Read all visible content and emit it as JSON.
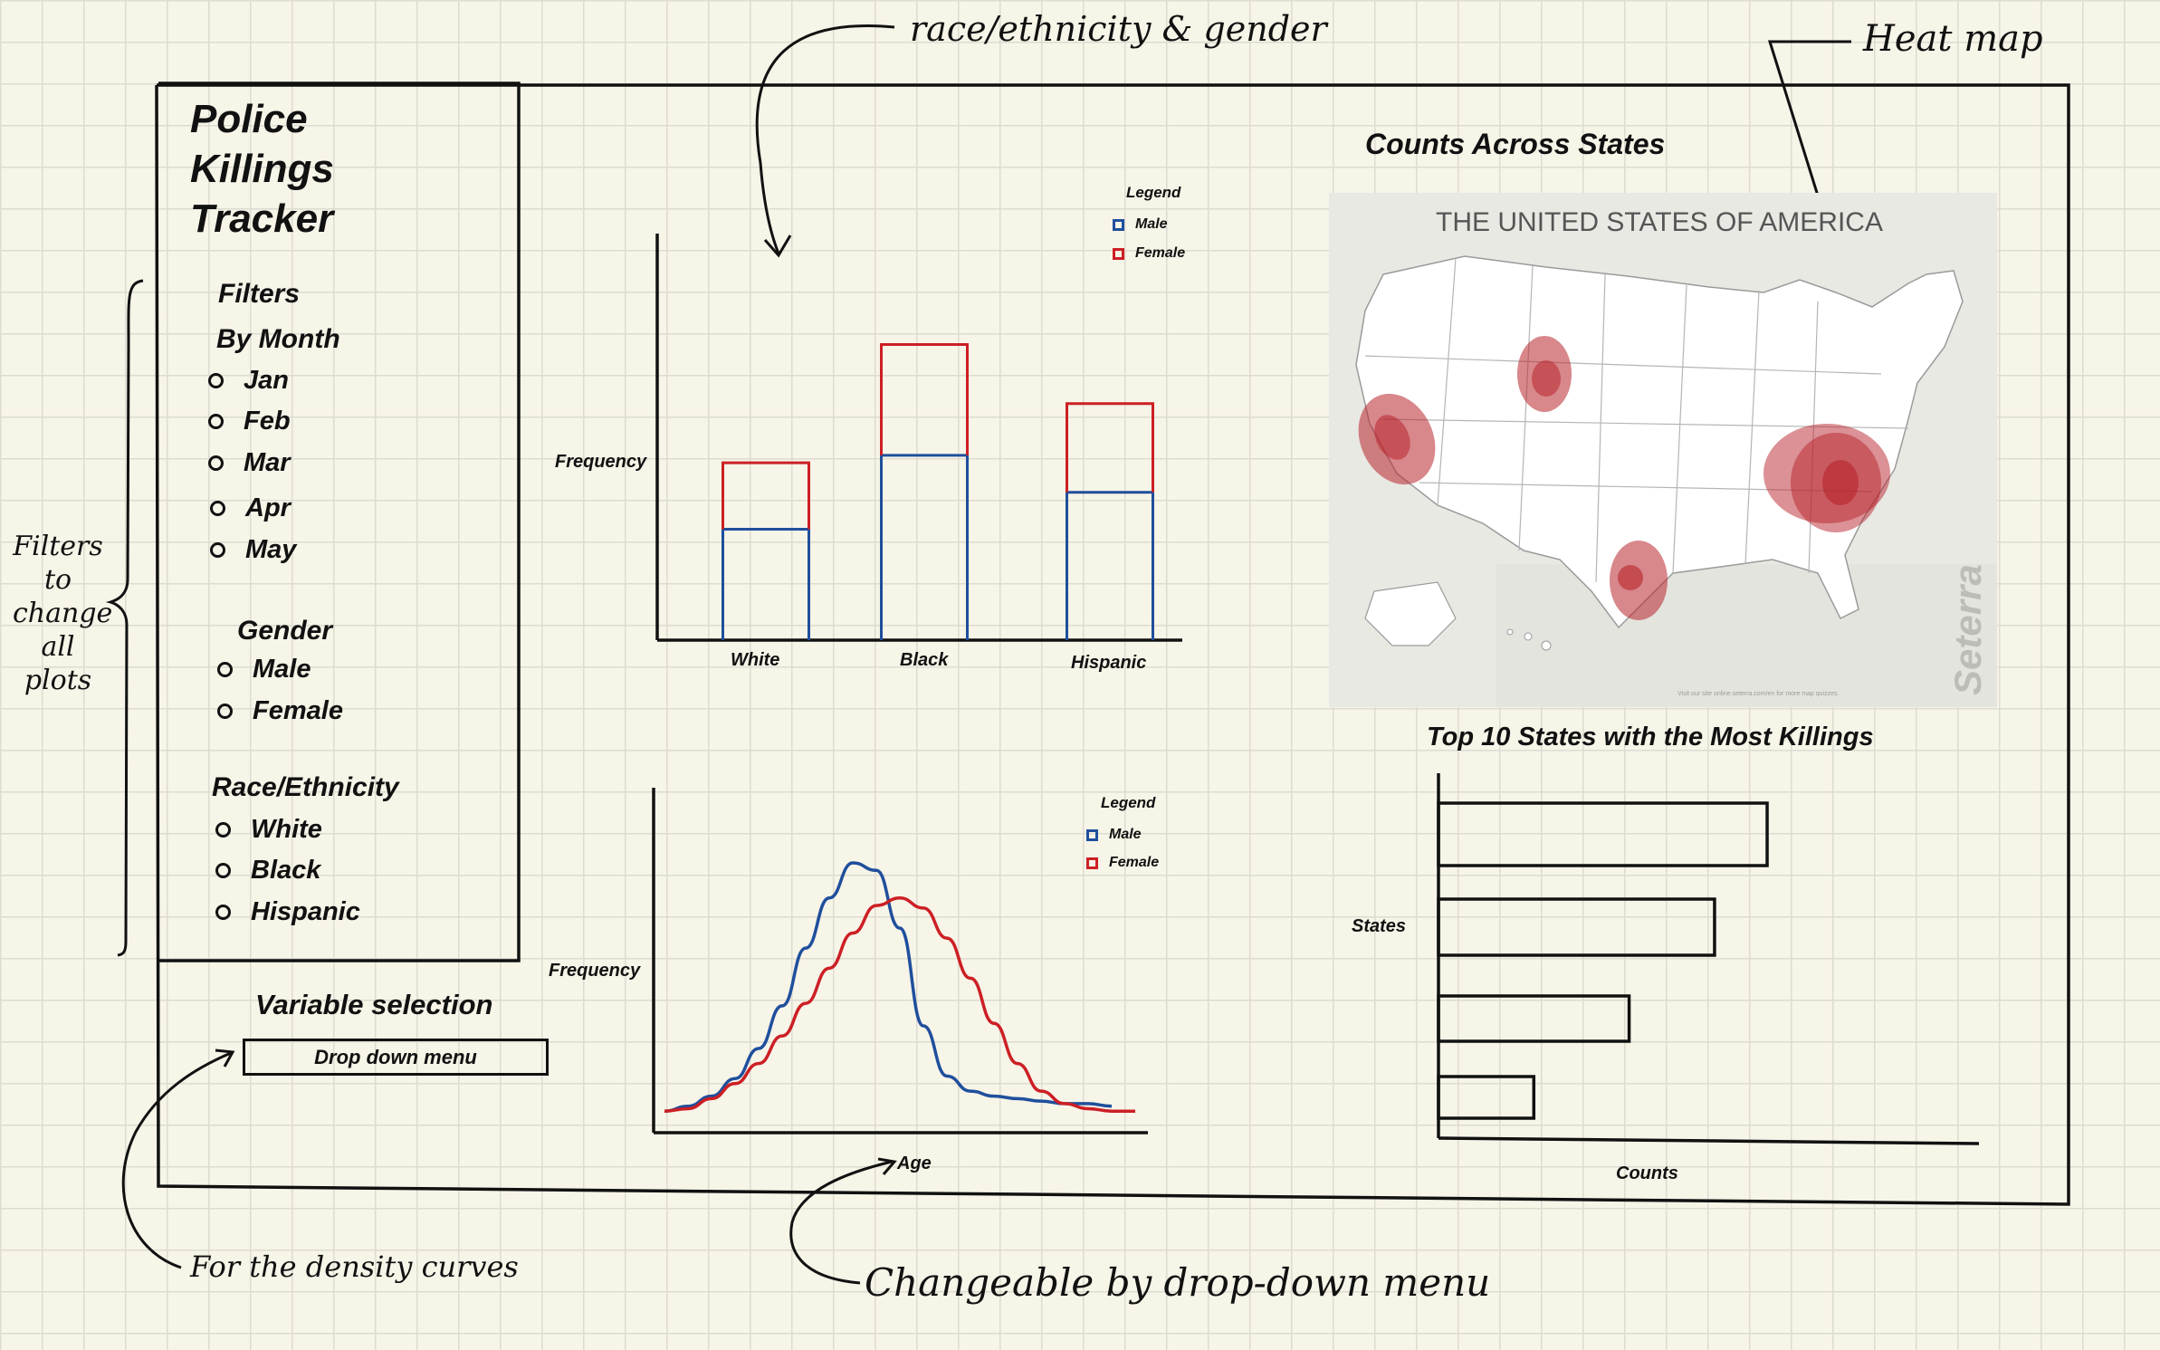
{
  "dashboard": {
    "title_lines": [
      "Police",
      "Killings",
      "Tracker"
    ],
    "filters": {
      "heading": "Filters",
      "month": {
        "heading": "By Month",
        "options": [
          "Jan",
          "Feb",
          "Mar",
          "Apr",
          "May"
        ]
      },
      "gender": {
        "heading": "Gender",
        "options": [
          "Male",
          "Female"
        ]
      },
      "race": {
        "heading": "Race/Ethnicity",
        "options": [
          "White",
          "Black",
          "Hispanic"
        ]
      }
    },
    "variable_selection": {
      "heading": "Variable selection",
      "dropdown_label": "Drop down menu"
    },
    "bar_chart": {
      "ylabel": "Frequency",
      "categories": [
        "White",
        "Black",
        "Hispanic"
      ],
      "legend_title": "Legend",
      "legend": [
        "Male",
        "Female"
      ]
    },
    "density_chart": {
      "ylabel": "Frequency",
      "xlabel": "Age",
      "legend_title": "Legend",
      "legend": [
        "Male",
        "Female"
      ]
    },
    "map": {
      "heading": "Counts Across States",
      "map_title": "THE UNITED STATES OF AMERICA",
      "watermark": "Seterra",
      "footnote": "Visit our site online.seterra.com/en for more map quizzes."
    },
    "top10": {
      "heading": "Top 10 States with the Most Killings",
      "ylabel": "States",
      "xlabel": "Counts"
    }
  },
  "annotations": {
    "race_gender": "race/ethnicity & gender",
    "heat_map": "Heat map",
    "filters_note": [
      "Filters",
      "to",
      "change",
      "all",
      "plots"
    ],
    "density_note": "For the density curves",
    "dropdown_note": "Changeable by drop-down menu"
  },
  "colors": {
    "male": "#1f4f9c",
    "female": "#cc1f24",
    "heat": "#b8242b",
    "ink": "#111111"
  },
  "chart_data": [
    {
      "type": "bar",
      "stacked": true,
      "categories": [
        "White",
        "Black",
        "Hispanic"
      ],
      "series": [
        {
          "name": "Male",
          "values": [
            3,
            5,
            4
          ]
        },
        {
          "name": "Female",
          "values": [
            1.8,
            3,
            2.4
          ]
        }
      ],
      "ylabel": "Frequency",
      "ylim": [
        0,
        11
      ]
    },
    {
      "type": "line",
      "xlabel": "Age",
      "ylabel": "Frequency",
      "xlim": [
        0,
        100
      ],
      "ylim": [
        0,
        1
      ],
      "series": [
        {
          "name": "Male",
          "x": [
            0,
            5,
            10,
            15,
            20,
            25,
            30,
            35,
            40,
            45,
            50,
            55,
            60,
            65,
            70,
            75,
            80,
            85,
            90,
            95
          ],
          "y": [
            0.01,
            0.03,
            0.07,
            0.14,
            0.26,
            0.43,
            0.66,
            0.86,
            1.0,
            0.97,
            0.74,
            0.35,
            0.15,
            0.09,
            0.07,
            0.06,
            0.05,
            0.04,
            0.04,
            0.03
          ]
        },
        {
          "name": "Female",
          "x": [
            0,
            5,
            10,
            15,
            20,
            25,
            30,
            35,
            40,
            45,
            50,
            55,
            60,
            65,
            70,
            75,
            80,
            85,
            90,
            95,
            100
          ],
          "y": [
            0.01,
            0.02,
            0.06,
            0.12,
            0.2,
            0.31,
            0.44,
            0.58,
            0.72,
            0.83,
            0.86,
            0.82,
            0.7,
            0.54,
            0.36,
            0.2,
            0.09,
            0.04,
            0.02,
            0.01,
            0.01
          ]
        }
      ]
    },
    {
      "type": "bar",
      "orientation": "horizontal",
      "categories": [
        "",
        "",
        "",
        ""
      ],
      "values": [
        100,
        84,
        58,
        29
      ],
      "ylabel": "States",
      "xlabel": "Counts",
      "xlim": [
        0,
        148
      ]
    }
  ]
}
